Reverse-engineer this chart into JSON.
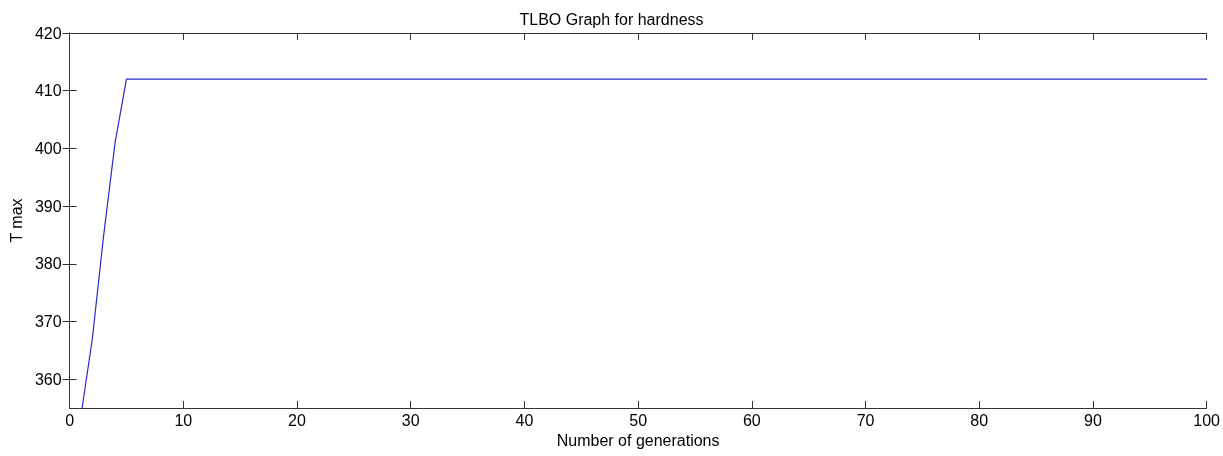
{
  "chart_data": {
    "type": "line",
    "title": "TLBO Graph for hardness",
    "xlabel": "Number of generations",
    "ylabel": "T max",
    "series": [
      {
        "color": "#2b2bc8",
        "x": [
          1.1,
          2,
          3,
          4,
          5,
          100
        ],
        "values": [
          355,
          367,
          385,
          401,
          412,
          412
        ]
      }
    ],
    "xlim": [
      0,
      100
    ],
    "xticks": [
      0,
      10,
      20,
      30,
      40,
      50,
      60,
      70,
      80,
      90,
      100
    ],
    "ylim": [
      355,
      420
    ],
    "yticks": [
      360,
      370,
      380,
      390,
      400,
      410,
      420
    ],
    "grid": false,
    "marker": "none",
    "line_style": "solid"
  }
}
